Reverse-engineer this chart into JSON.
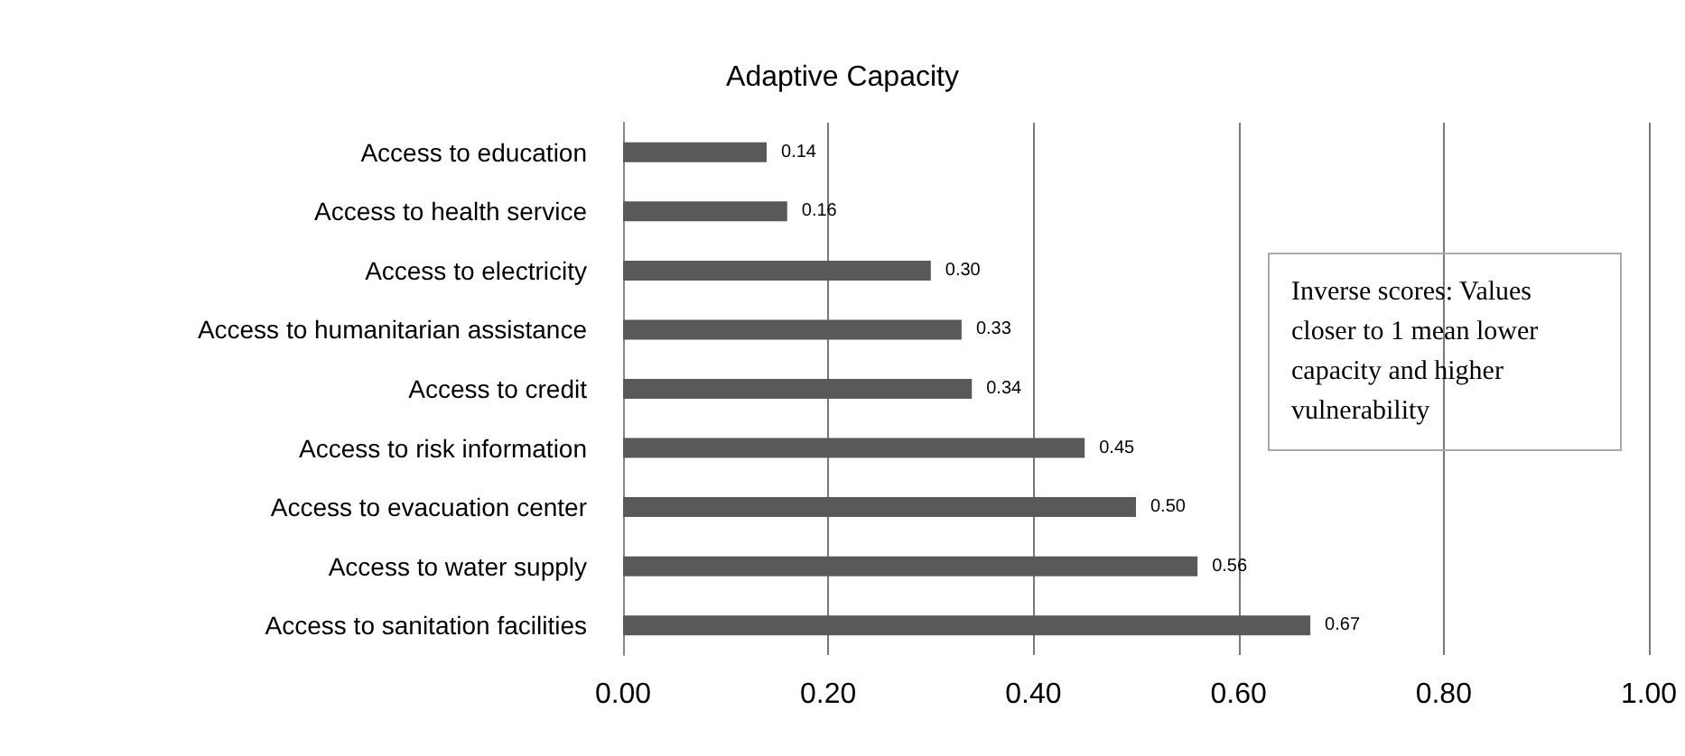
{
  "chart_data": {
    "type": "bar",
    "orientation": "horizontal",
    "title": "Adaptive Capacity",
    "categories": [
      "Access to education",
      "Access to health service",
      "Access to electricity",
      "Access to humanitarian assistance",
      "Access to credit",
      "Access to risk information",
      "Access to evacuation center",
      "Access to water supply",
      "Access to sanitation facilities"
    ],
    "values": [
      0.14,
      0.16,
      0.3,
      0.33,
      0.34,
      0.45,
      0.5,
      0.56,
      0.67
    ],
    "value_labels": [
      "0.14",
      "0.16",
      "0.30",
      "0.33",
      "0.34",
      "0.45",
      "0.50",
      "0.56",
      "0.67"
    ],
    "color": "#595959",
    "xlim": [
      0,
      1
    ],
    "xticks": [
      {
        "value": 0,
        "label": "0.00"
      },
      {
        "value": 0.2,
        "label": "0.20"
      },
      {
        "value": 0.4,
        "label": "0.40"
      },
      {
        "value": 0.6,
        "label": "0.60"
      },
      {
        "value": 0.8,
        "label": "0.80"
      },
      {
        "value": 1,
        "label": "1.00"
      }
    ],
    "grid": "x",
    "annotations": [
      "Inverse scores: Values closer to 1 mean lower capacity and higher vulnerability"
    ]
  }
}
